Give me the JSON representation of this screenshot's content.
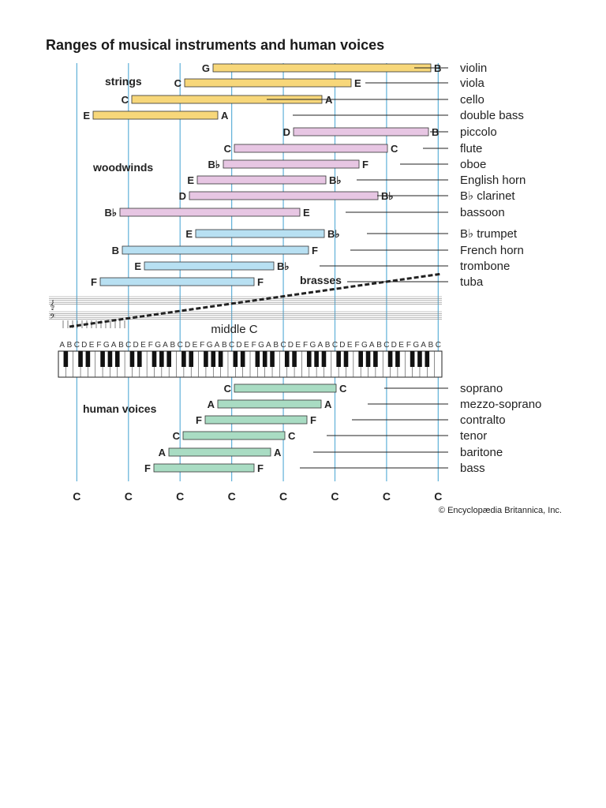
{
  "title": "Ranges of musical instruments and human voices",
  "credit": "© Encyclopædia Britannica, Inc.",
  "middle_c_label": "middle C",
  "keyboard_letters": "ABCDEFGABCDEFGABCDEFGABCDEFGABCDEFGABCDEFGABCDEFGABC",
  "c_markers": [
    "C",
    "C",
    "C",
    "C",
    "C",
    "C",
    "C",
    "C"
  ],
  "colors": {
    "strings": "#f7d77a",
    "woodwinds": "#e7c6e3",
    "brasses": "#b8e0f2",
    "voices": "#a9dcc3",
    "guide_lines": "#5fb0d8"
  },
  "chart_data": {
    "type": "range",
    "x_axis": "piano keyboard white keys, A to C (8 octave markers labelled C)",
    "groups": [
      {
        "name": "strings",
        "instruments": [
          {
            "name": "violin",
            "low": "G",
            "high": "B"
          },
          {
            "name": "viola",
            "low": "C",
            "high": "E"
          },
          {
            "name": "cello",
            "low": "C",
            "high": "A"
          },
          {
            "name": "double bass",
            "low": "E",
            "high": "A"
          }
        ]
      },
      {
        "name": "woodwinds",
        "instruments": [
          {
            "name": "piccolo",
            "low": "D",
            "high": "B"
          },
          {
            "name": "flute",
            "low": "C",
            "high": "C"
          },
          {
            "name": "oboe",
            "low": "B♭",
            "high": "F"
          },
          {
            "name": "English horn",
            "low": "E",
            "high": "B♭"
          },
          {
            "name": "B♭ clarinet",
            "low": "D",
            "high": "B♭"
          },
          {
            "name": "bassoon",
            "low": "B♭",
            "high": "E"
          }
        ]
      },
      {
        "name": "brasses",
        "instruments": [
          {
            "name": "B♭ trumpet",
            "low": "E",
            "high": "B♭"
          },
          {
            "name": "French horn",
            "low": "B",
            "high": "F"
          },
          {
            "name": "trombone",
            "low": "E",
            "high": "B♭"
          },
          {
            "name": "tuba",
            "low": "F",
            "high": "F"
          }
        ]
      },
      {
        "name": "human voices",
        "instruments": [
          {
            "name": "soprano",
            "low": "C",
            "high": "C"
          },
          {
            "name": "mezzo-soprano",
            "low": "A",
            "high": "A"
          },
          {
            "name": "contralto",
            "low": "F",
            "high": "F"
          },
          {
            "name": "tenor",
            "low": "C",
            "high": "C"
          },
          {
            "name": "baritone",
            "low": "A",
            "high": "A"
          },
          {
            "name": "bass",
            "low": "F",
            "high": "F"
          }
        ]
      }
    ]
  }
}
